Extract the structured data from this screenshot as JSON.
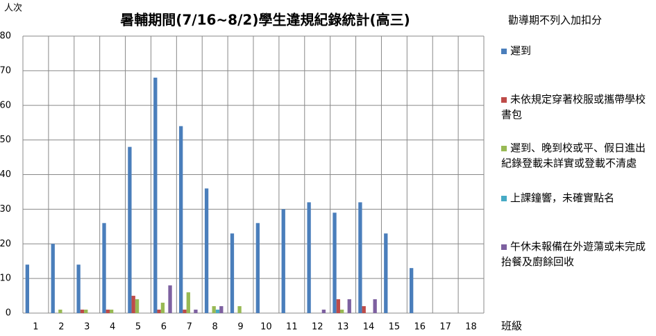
{
  "chart_data": {
    "type": "bar",
    "title": "暑輔期間(7/16~8/2)學生違規紀錄統計(高三)",
    "y_label": "人次",
    "x_label": "班級",
    "legend_title": "勸導期不列入加扣分",
    "categories": [
      "1",
      "2",
      "3",
      "4",
      "5",
      "6",
      "7",
      "8",
      "9",
      "10",
      "11",
      "12",
      "13",
      "14",
      "15",
      "16",
      "17",
      "18"
    ],
    "series": [
      {
        "name": "遲到",
        "color": "#4a7ebb",
        "values": [
          14,
          20,
          14,
          26,
          48,
          68,
          54,
          36,
          23,
          26,
          30,
          32,
          29,
          32,
          23,
          13,
          0,
          0
        ]
      },
      {
        "name": "未依規定穿著校服或攜帶學校書包",
        "color": "#be4b48",
        "values": [
          0,
          0,
          1,
          1,
          5,
          1,
          1,
          0,
          0,
          0,
          0,
          0,
          4,
          2,
          0,
          0,
          0,
          0
        ]
      },
      {
        "name": "遲到、晚到校或平、假日進出紀錄登載未詳實或登載不清處",
        "color": "#98b954",
        "values": [
          0,
          1,
          1,
          1,
          4,
          3,
          6,
          2,
          2,
          0,
          0,
          0,
          1,
          0,
          0,
          0,
          0,
          0
        ]
      },
      {
        "name": "上課鐘響，未確實點名",
        "color": "#46aac5",
        "values": [
          0,
          0,
          0,
          0,
          0,
          0,
          0,
          1,
          0,
          0,
          0,
          0,
          0,
          0,
          0,
          0,
          0,
          0
        ]
      },
      {
        "name": "午休未報備在外遊蕩或未完成抬餐及廚餘回收",
        "color": "#7d60a0",
        "values": [
          0,
          0,
          0,
          0,
          0,
          8,
          1,
          2,
          0,
          0,
          0,
          1,
          4,
          4,
          0,
          0,
          0,
          0
        ]
      }
    ],
    "ylim": [
      0,
      80
    ],
    "yticks": [
      0,
      10,
      20,
      30,
      40,
      50,
      60,
      70,
      80
    ],
    "grid": true
  }
}
